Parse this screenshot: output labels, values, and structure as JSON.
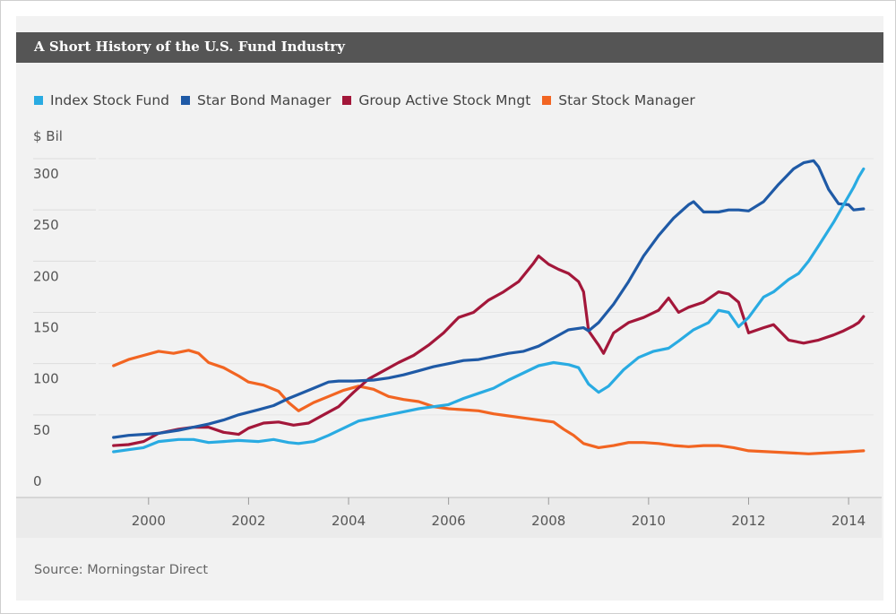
{
  "title": "A Short History of the U.S. Fund Industry",
  "source": "Source: Morningstar Direct",
  "chart_data": {
    "type": "line",
    "title": "A Short History of the U.S. Fund Industry",
    "ylabel": "$ Bil",
    "xlabel": "",
    "ylim": [
      0,
      300
    ],
    "xlim": [
      1999.0,
      2014.5
    ],
    "yticks": [
      0,
      50,
      100,
      150,
      200,
      250,
      300
    ],
    "xticks": [
      2000,
      2002,
      2004,
      2006,
      2008,
      2010,
      2012,
      2014
    ],
    "grid": "horizontal",
    "legend_position": "top",
    "series": [
      {
        "name": "Index Stock Fund",
        "color": "#29abe2",
        "points": [
          [
            1999.3,
            14
          ],
          [
            1999.6,
            16
          ],
          [
            1999.9,
            18
          ],
          [
            2000.2,
            24
          ],
          [
            2000.6,
            26
          ],
          [
            2000.9,
            26
          ],
          [
            2001.2,
            23
          ],
          [
            2001.5,
            24
          ],
          [
            2001.8,
            25
          ],
          [
            2002.2,
            24
          ],
          [
            2002.5,
            26
          ],
          [
            2002.8,
            23
          ],
          [
            2003.0,
            22
          ],
          [
            2003.3,
            24
          ],
          [
            2003.6,
            30
          ],
          [
            2003.9,
            37
          ],
          [
            2004.2,
            44
          ],
          [
            2004.5,
            47
          ],
          [
            2004.8,
            50
          ],
          [
            2005.1,
            53
          ],
          [
            2005.4,
            56
          ],
          [
            2005.7,
            58
          ],
          [
            2006.0,
            60
          ],
          [
            2006.3,
            66
          ],
          [
            2006.6,
            71
          ],
          [
            2006.9,
            76
          ],
          [
            2007.2,
            84
          ],
          [
            2007.5,
            91
          ],
          [
            2007.8,
            98
          ],
          [
            2008.1,
            101
          ],
          [
            2008.4,
            99
          ],
          [
            2008.6,
            96
          ],
          [
            2008.8,
            80
          ],
          [
            2009.0,
            72
          ],
          [
            2009.2,
            78
          ],
          [
            2009.5,
            94
          ],
          [
            2009.8,
            106
          ],
          [
            2010.1,
            112
          ],
          [
            2010.4,
            115
          ],
          [
            2010.6,
            122
          ],
          [
            2010.9,
            133
          ],
          [
            2011.2,
            140
          ],
          [
            2011.4,
            152
          ],
          [
            2011.6,
            150
          ],
          [
            2011.8,
            136
          ],
          [
            2012.0,
            145
          ],
          [
            2012.3,
            165
          ],
          [
            2012.5,
            170
          ],
          [
            2012.8,
            182
          ],
          [
            2013.0,
            188
          ],
          [
            2013.2,
            200
          ],
          [
            2013.4,
            215
          ],
          [
            2013.7,
            238
          ],
          [
            2013.9,
            255
          ],
          [
            2014.1,
            272
          ],
          [
            2014.2,
            282
          ],
          [
            2014.3,
            290
          ]
        ]
      },
      {
        "name": "Star Bond Manager",
        "color": "#1f5aa6",
        "points": [
          [
            1999.3,
            28
          ],
          [
            1999.6,
            30
          ],
          [
            1999.9,
            31
          ],
          [
            2000.2,
            32
          ],
          [
            2000.6,
            35
          ],
          [
            2000.9,
            38
          ],
          [
            2001.2,
            41
          ],
          [
            2001.5,
            45
          ],
          [
            2001.8,
            50
          ],
          [
            2002.2,
            55
          ],
          [
            2002.5,
            59
          ],
          [
            2002.8,
            66
          ],
          [
            2003.0,
            70
          ],
          [
            2003.3,
            76
          ],
          [
            2003.6,
            82
          ],
          [
            2003.8,
            83
          ],
          [
            2004.1,
            83
          ],
          [
            2004.5,
            84
          ],
          [
            2004.8,
            86
          ],
          [
            2005.1,
            89
          ],
          [
            2005.4,
            93
          ],
          [
            2005.7,
            97
          ],
          [
            2006.0,
            100
          ],
          [
            2006.3,
            103
          ],
          [
            2006.6,
            104
          ],
          [
            2006.9,
            107
          ],
          [
            2007.2,
            110
          ],
          [
            2007.5,
            112
          ],
          [
            2007.8,
            117
          ],
          [
            2008.1,
            125
          ],
          [
            2008.4,
            133
          ],
          [
            2008.7,
            135
          ],
          [
            2008.8,
            132
          ],
          [
            2009.0,
            140
          ],
          [
            2009.3,
            158
          ],
          [
            2009.6,
            180
          ],
          [
            2009.9,
            205
          ],
          [
            2010.2,
            225
          ],
          [
            2010.5,
            242
          ],
          [
            2010.8,
            255
          ],
          [
            2010.9,
            258
          ],
          [
            2011.1,
            248
          ],
          [
            2011.4,
            248
          ],
          [
            2011.6,
            250
          ],
          [
            2011.8,
            250
          ],
          [
            2012.0,
            249
          ],
          [
            2012.3,
            258
          ],
          [
            2012.6,
            275
          ],
          [
            2012.9,
            290
          ],
          [
            2013.1,
            296
          ],
          [
            2013.3,
            298
          ],
          [
            2013.4,
            292
          ],
          [
            2013.6,
            270
          ],
          [
            2013.8,
            256
          ],
          [
            2014.0,
            255
          ],
          [
            2014.1,
            250
          ],
          [
            2014.3,
            251
          ]
        ]
      },
      {
        "name": "Group Active Stock Mngt",
        "color": "#a3173a",
        "points": [
          [
            1999.3,
            20
          ],
          [
            1999.6,
            21
          ],
          [
            1999.9,
            24
          ],
          [
            2000.2,
            32
          ],
          [
            2000.6,
            36
          ],
          [
            2000.9,
            38
          ],
          [
            2001.2,
            38
          ],
          [
            2001.5,
            33
          ],
          [
            2001.8,
            31
          ],
          [
            2002.0,
            37
          ],
          [
            2002.3,
            42
          ],
          [
            2002.6,
            43
          ],
          [
            2002.9,
            40
          ],
          [
            2003.2,
            42
          ],
          [
            2003.5,
            50
          ],
          [
            2003.8,
            58
          ],
          [
            2004.1,
            72
          ],
          [
            2004.4,
            85
          ],
          [
            2004.7,
            93
          ],
          [
            2005.0,
            101
          ],
          [
            2005.3,
            108
          ],
          [
            2005.6,
            118
          ],
          [
            2005.9,
            130
          ],
          [
            2006.2,
            145
          ],
          [
            2006.5,
            150
          ],
          [
            2006.8,
            162
          ],
          [
            2007.1,
            170
          ],
          [
            2007.4,
            180
          ],
          [
            2007.7,
            198
          ],
          [
            2007.8,
            205
          ],
          [
            2008.0,
            197
          ],
          [
            2008.2,
            192
          ],
          [
            2008.4,
            188
          ],
          [
            2008.6,
            180
          ],
          [
            2008.7,
            170
          ],
          [
            2008.8,
            132
          ],
          [
            2009.0,
            118
          ],
          [
            2009.1,
            110
          ],
          [
            2009.3,
            130
          ],
          [
            2009.6,
            140
          ],
          [
            2009.9,
            145
          ],
          [
            2010.2,
            152
          ],
          [
            2010.4,
            164
          ],
          [
            2010.6,
            150
          ],
          [
            2010.8,
            155
          ],
          [
            2011.1,
            160
          ],
          [
            2011.4,
            170
          ],
          [
            2011.6,
            168
          ],
          [
            2011.8,
            160
          ],
          [
            2012.0,
            130
          ],
          [
            2012.3,
            135
          ],
          [
            2012.5,
            138
          ],
          [
            2012.8,
            123
          ],
          [
            2013.1,
            120
          ],
          [
            2013.4,
            123
          ],
          [
            2013.7,
            128
          ],
          [
            2013.9,
            132
          ],
          [
            2014.1,
            137
          ],
          [
            2014.2,
            140
          ],
          [
            2014.3,
            146
          ]
        ]
      },
      {
        "name": "Star Stock Manager",
        "color": "#f26522",
        "points": [
          [
            1999.3,
            98
          ],
          [
            1999.6,
            104
          ],
          [
            1999.9,
            108
          ],
          [
            2000.2,
            112
          ],
          [
            2000.5,
            110
          ],
          [
            2000.8,
            113
          ],
          [
            2001.0,
            110
          ],
          [
            2001.2,
            101
          ],
          [
            2001.5,
            96
          ],
          [
            2001.8,
            88
          ],
          [
            2002.0,
            82
          ],
          [
            2002.3,
            79
          ],
          [
            2002.6,
            73
          ],
          [
            2002.8,
            62
          ],
          [
            2003.0,
            54
          ],
          [
            2003.3,
            62
          ],
          [
            2003.6,
            68
          ],
          [
            2003.9,
            74
          ],
          [
            2004.2,
            78
          ],
          [
            2004.5,
            75
          ],
          [
            2004.8,
            68
          ],
          [
            2005.1,
            65
          ],
          [
            2005.4,
            63
          ],
          [
            2005.7,
            58
          ],
          [
            2006.0,
            56
          ],
          [
            2006.3,
            55
          ],
          [
            2006.6,
            54
          ],
          [
            2006.9,
            51
          ],
          [
            2007.2,
            49
          ],
          [
            2007.5,
            47
          ],
          [
            2007.8,
            45
          ],
          [
            2008.1,
            43
          ],
          [
            2008.3,
            36
          ],
          [
            2008.5,
            30
          ],
          [
            2008.7,
            22
          ],
          [
            2009.0,
            18
          ],
          [
            2009.3,
            20
          ],
          [
            2009.6,
            23
          ],
          [
            2009.9,
            23
          ],
          [
            2010.2,
            22
          ],
          [
            2010.5,
            20
          ],
          [
            2010.8,
            19
          ],
          [
            2011.1,
            20
          ],
          [
            2011.4,
            20
          ],
          [
            2011.7,
            18
          ],
          [
            2012.0,
            15
          ],
          [
            2012.4,
            14
          ],
          [
            2012.8,
            13
          ],
          [
            2013.2,
            12
          ],
          [
            2013.6,
            13
          ],
          [
            2014.0,
            14
          ],
          [
            2014.3,
            15
          ]
        ]
      }
    ]
  }
}
